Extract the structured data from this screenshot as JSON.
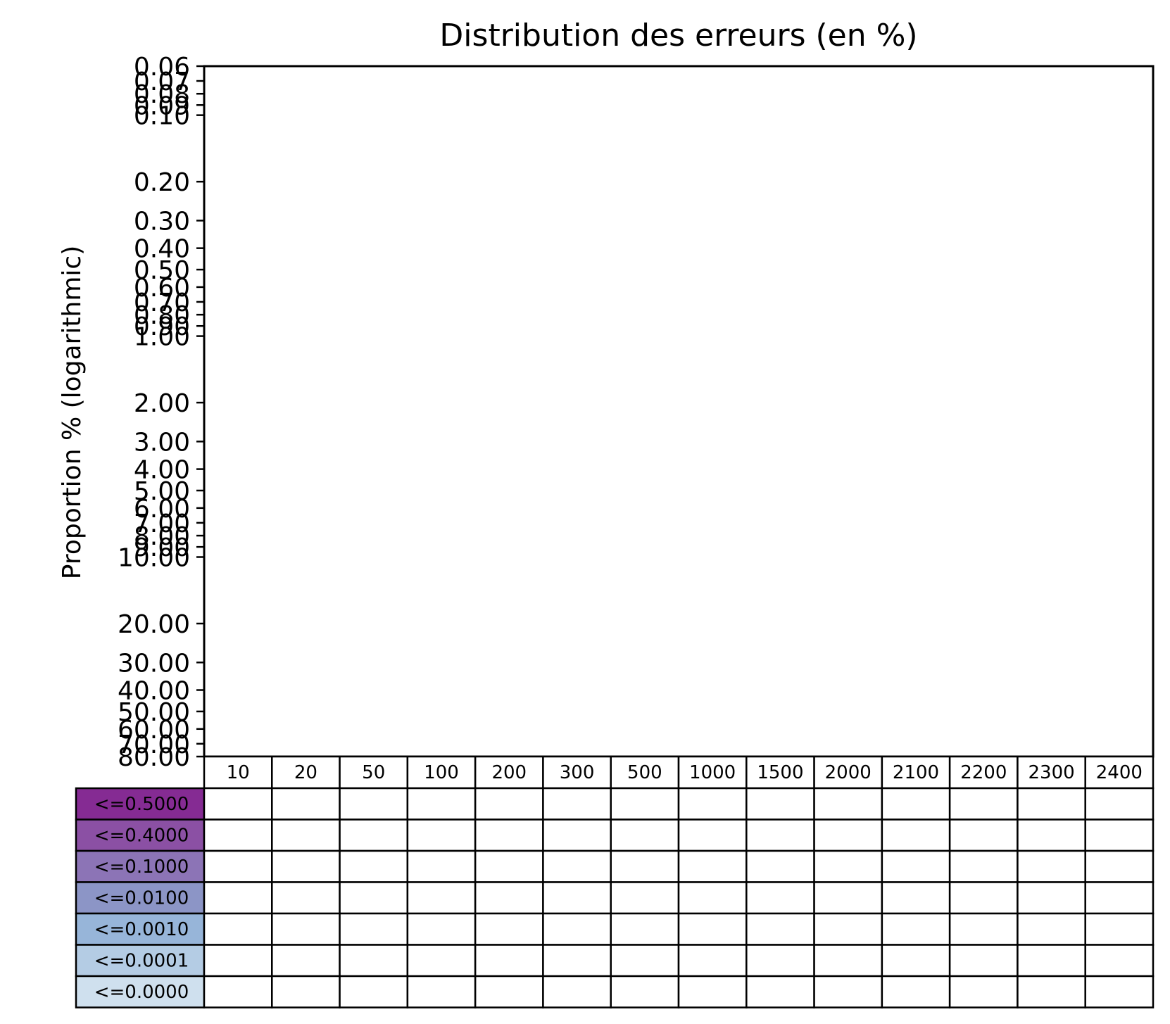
{
  "chart_data": {
    "type": "bar",
    "title": "Distribution des erreurs (en %)",
    "xlabel": "",
    "ylabel": "Proportion % (logarithmic)",
    "y_scale": "log",
    "y_inverted": true,
    "ylim": [
      0.06,
      80
    ],
    "y_ticks": [
      0.06,
      0.07,
      0.08,
      0.09,
      0.1,
      0.2,
      0.3,
      0.4,
      0.5,
      0.6,
      0.7,
      0.8,
      0.9,
      1,
      2,
      3,
      4,
      5,
      6,
      7,
      8,
      9,
      10,
      20,
      30,
      40,
      50,
      60,
      70,
      80
    ],
    "y_tick_labels": [
      "0.06",
      "0.07",
      "0.08",
      "0.09",
      "0.10",
      "0.20",
      "0.30",
      "0.40",
      "0.50",
      "0.60",
      "0.70",
      "0.80",
      "0.90",
      "1.00",
      "2.00",
      "3.00",
      "4.00",
      "5.00",
      "6.00",
      "7.00",
      "8.00",
      "9.00",
      "10.00",
      "20.00",
      "30.00",
      "40.00",
      "50.00",
      "60.00",
      "70.00",
      "80.00"
    ],
    "categories": [
      "10",
      "20",
      "50",
      "100",
      "200",
      "300",
      "500",
      "1000",
      "1500",
      "2000",
      "2100",
      "2200",
      "2300",
      "2400"
    ],
    "series": [
      {
        "name": "<=0.5000",
        "color": "#852b93",
        "values": [
          null,
          null,
          null,
          null,
          null,
          null,
          null,
          null,
          null,
          null,
          null,
          null,
          null,
          null
        ]
      },
      {
        "name": "<=0.4000",
        "color": "#8b50a4",
        "values": [
          null,
          null,
          null,
          null,
          null,
          null,
          null,
          null,
          null,
          null,
          null,
          null,
          null,
          null
        ]
      },
      {
        "name": "<=0.1000",
        "color": "#8c74b6",
        "values": [
          null,
          null,
          null,
          null,
          null,
          null,
          null,
          null,
          null,
          null,
          null,
          null,
          null,
          null
        ]
      },
      {
        "name": "<=0.0100",
        "color": "#8c95c6",
        "values": [
          null,
          null,
          null,
          null,
          null,
          null,
          null,
          null,
          null,
          null,
          null,
          null,
          null,
          null
        ]
      },
      {
        "name": "<=0.0010",
        "color": "#97b5d9",
        "values": [
          null,
          null,
          null,
          null,
          null,
          null,
          null,
          null,
          null,
          null,
          null,
          null,
          null,
          null
        ]
      },
      {
        "name": "<=0.0001",
        "color": "#b4cce4",
        "values": [
          null,
          null,
          null,
          null,
          null,
          null,
          null,
          null,
          null,
          null,
          null,
          null,
          null,
          null
        ]
      },
      {
        "name": "<=0.0000",
        "color": "#cfe0ee",
        "values": [
          null,
          null,
          null,
          null,
          null,
          null,
          null,
          null,
          null,
          null,
          null,
          null,
          null,
          null
        ]
      }
    ],
    "grid": false,
    "legend": "table-below"
  }
}
